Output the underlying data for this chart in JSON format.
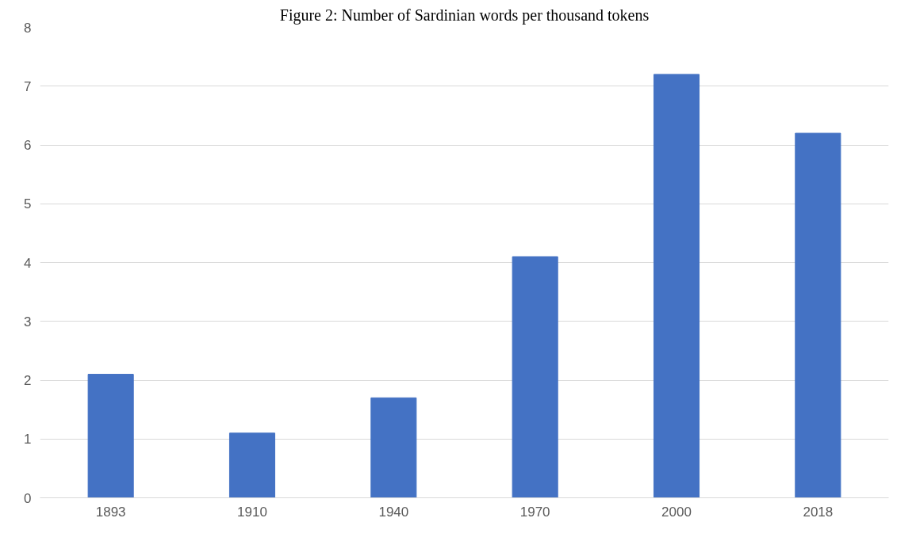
{
  "chart_data": {
    "type": "bar",
    "title": "Figure 2: Number of Sardinian words per thousand tokens",
    "categories": [
      "1893",
      "1910",
      "1940",
      "1970",
      "2000",
      "2018"
    ],
    "values": [
      2.1,
      1.1,
      1.7,
      4.1,
      7.2,
      6.2
    ],
    "color": "#4472c4",
    "ylim": [
      0,
      8
    ],
    "yticks": [
      0,
      1,
      2,
      3,
      4,
      5,
      6,
      7,
      8
    ],
    "grid": "y"
  }
}
